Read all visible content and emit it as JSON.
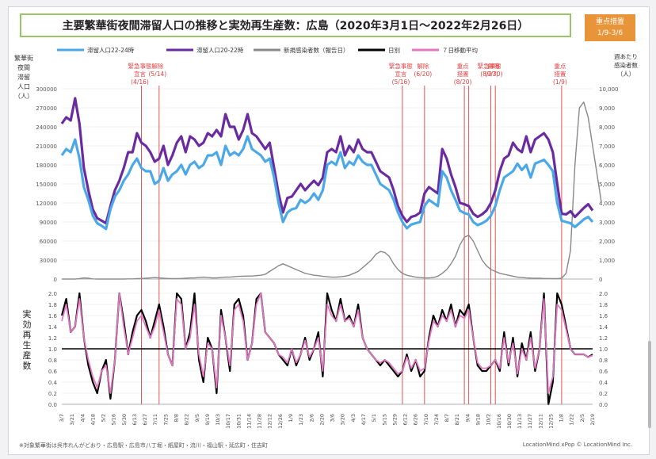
{
  "title": "主要繁華街夜間滞留人口の推移と実効再生産数：広島（2020年3月1日～2022年2月26日）",
  "badge": {
    "line1": "重点措置",
    "line2": "1/9-3/6"
  },
  "legend": {
    "stay_22_24": "滞留人口22-24時",
    "stay_20_22": "滞留人口20-22時",
    "new_cases": "新規感染者数（報告日）",
    "daily": "日別",
    "ma7": "７日移動平均"
  },
  "left_axis_label": [
    "繁華街",
    "夜間",
    "滞留",
    "人口",
    "（人）"
  ],
  "right_axis_label": [
    "週あたり",
    "感染者数",
    "（人）"
  ],
  "rt_axis_label": [
    "実",
    "効",
    "再",
    "生",
    "産",
    "数"
  ],
  "events": [
    {
      "label": [
        "緊急事態",
        "宣言",
        "(4/16)"
      ],
      "x": 18
    },
    {
      "label": [
        "解除",
        "(5/14)"
      ],
      "x": 22
    },
    {
      "label": [
        "緊急事態",
        "宣言",
        "(5/16)"
      ],
      "x": 77
    },
    {
      "label": [
        "解除",
        "(6/20)"
      ],
      "x": 82
    },
    {
      "label": [
        "重点",
        "措置",
        "(8/20)"
      ],
      "x": 91
    },
    {
      "label": [
        ""
      ],
      "x": 92
    },
    {
      "label": [
        "緊急事態",
        "(8/27)"
      ],
      "x": 97
    },
    {
      "label": [
        "解除",
        "(9/30)"
      ],
      "x": 98
    },
    {
      "label": [
        "重点",
        "措置",
        "(1/9)"
      ],
      "x": 113
    }
  ],
  "footnote": "※対象繁華街は呉市れんがどおり・広島駅・広島市八丁堀・紙屋町・流川・福山駅・延広町・住吉町",
  "copyright": "LocationMind xPop © LocationMind Inc.",
  "colors": {
    "stay_22_24": "#4aa8e8",
    "stay_20_22": "#6a2aa0",
    "cases": "#888888",
    "daily": "#000000",
    "ma7": "#e377c2",
    "event": "#e04040"
  },
  "chart_data": [
    {
      "type": "line",
      "title": "主要繁華街夜間滞留人口の推移と実効再生産数：広島（2020年3月1日～2022年2月26日）",
      "x_tick_labels": [
        "3/7",
        "3/21",
        "4/4",
        "4/18",
        "5/2",
        "5/16",
        "5/30",
        "6/13",
        "6/27",
        "7/11",
        "7/25",
        "8/8",
        "8/22",
        "9/5",
        "9/19",
        "10/3",
        "10/17",
        "10/31",
        "11/14",
        "11/28",
        "12/12",
        "12/26",
        "1/9",
        "1/23",
        "2/6",
        "2/20",
        "3/6",
        "3/20",
        "4/3",
        "4/17",
        "5/1",
        "5/15",
        "5/29",
        "6/12",
        "6/26",
        "7/10",
        "7/24",
        "8/7",
        "8/21",
        "9/4",
        "9/18",
        "10/2",
        "10/16",
        "10/30",
        "11/13",
        "11/27",
        "12/11",
        "12/25",
        "1/8",
        "1/22",
        "2/5",
        "2/19"
      ],
      "left_ylim": [
        0,
        300000
      ],
      "left_yticks": [
        "0",
        "30000",
        "60000",
        "90000",
        "120000",
        "150000",
        "180000",
        "210000",
        "240000",
        "270000",
        "300000"
      ],
      "right_ylim": [
        0,
        10000
      ],
      "right_yticks": [
        "0",
        "1,000",
        "2,000",
        "3,000",
        "4,000",
        "5,000",
        "6,000",
        "7,000",
        "8,000",
        "9,000",
        "10,000"
      ],
      "series": [
        {
          "name": "滞留人口22-24時",
          "axis": "left",
          "values": [
            195000,
            205000,
            200000,
            220000,
            190000,
            145000,
            125000,
            100000,
            88000,
            84000,
            79000,
            110000,
            130000,
            140000,
            155000,
            165000,
            180000,
            190000,
            175000,
            170000,
            170000,
            150000,
            155000,
            175000,
            155000,
            165000,
            170000,
            180000,
            165000,
            180000,
            185000,
            175000,
            180000,
            195000,
            195000,
            200000,
            180000,
            210000,
            195000,
            200000,
            195000,
            205000,
            225000,
            205000,
            200000,
            195000,
            185000,
            190000,
            160000,
            120000,
            90000,
            105000,
            110000,
            112000,
            125000,
            120000,
            125000,
            135000,
            125000,
            140000,
            180000,
            185000,
            180000,
            200000,
            175000,
            185000,
            180000,
            195000,
            185000,
            180000,
            180000,
            165000,
            150000,
            145000,
            140000,
            125000,
            105000,
            90000,
            80000,
            86000,
            88000,
            90000,
            115000,
            125000,
            120000,
            115000,
            170000,
            160000,
            140000,
            125000,
            108000,
            104000,
            102000,
            90000,
            85000,
            88000,
            92000,
            100000,
            115000,
            140000,
            160000,
            165000,
            170000,
            182000,
            172000,
            180000,
            160000,
            182000,
            185000,
            188000,
            180000,
            170000,
            120000,
            92000,
            90000,
            88000,
            82000,
            88000,
            94000,
            98000,
            90000
          ]
        },
        {
          "name": "滞留人口20-22時",
          "axis": "left",
          "values": [
            245000,
            255000,
            250000,
            285000,
            245000,
            175000,
            140000,
            110000,
            96000,
            92000,
            88000,
            115000,
            140000,
            155000,
            175000,
            200000,
            200000,
            230000,
            215000,
            210000,
            200000,
            185000,
            190000,
            210000,
            180000,
            195000,
            215000,
            225000,
            200000,
            225000,
            220000,
            210000,
            215000,
            230000,
            225000,
            235000,
            225000,
            260000,
            240000,
            240000,
            220000,
            235000,
            260000,
            230000,
            225000,
            215000,
            205000,
            215000,
            175000,
            135000,
            105000,
            128000,
            130000,
            140000,
            150000,
            140000,
            148000,
            155000,
            148000,
            160000,
            200000,
            205000,
            200000,
            225000,
            195000,
            210000,
            200000,
            220000,
            205000,
            200000,
            200000,
            185000,
            170000,
            165000,
            160000,
            140000,
            115000,
            100000,
            90000,
            98000,
            100000,
            105000,
            135000,
            145000,
            140000,
            135000,
            205000,
            190000,
            165000,
            145000,
            120000,
            118000,
            115000,
            103000,
            98000,
            102000,
            108000,
            120000,
            140000,
            170000,
            190000,
            195000,
            215000,
            205000,
            200000,
            225000,
            200000,
            220000,
            225000,
            230000,
            220000,
            200000,
            150000,
            103000,
            102000,
            107000,
            98000,
            105000,
            112000,
            118000,
            108000
          ]
        },
        {
          "name": "新規感染者数（報告日）",
          "axis": "right",
          "values": [
            0,
            0,
            0,
            0,
            20,
            60,
            40,
            10,
            0,
            0,
            0,
            0,
            0,
            0,
            0,
            10,
            10,
            20,
            30,
            40,
            60,
            80,
            60,
            40,
            30,
            20,
            20,
            30,
            40,
            60,
            60,
            80,
            100,
            80,
            60,
            60,
            80,
            100,
            100,
            120,
            140,
            150,
            160,
            160,
            180,
            200,
            250,
            400,
            550,
            700,
            800,
            700,
            600,
            500,
            400,
            300,
            250,
            200,
            180,
            140,
            120,
            100,
            100,
            120,
            150,
            200,
            300,
            400,
            600,
            800,
            1000,
            1300,
            1450,
            1400,
            1200,
            800,
            500,
            300,
            200,
            150,
            100,
            80,
            60,
            60,
            80,
            150,
            300,
            500,
            800,
            1200,
            1800,
            2200,
            2300,
            2000,
            1500,
            1000,
            700,
            500,
            400,
            300,
            250,
            200,
            150,
            100,
            80,
            60,
            50,
            40,
            40,
            30,
            30,
            20,
            20,
            40,
            300,
            1500,
            6000,
            9000,
            9300,
            8500,
            7000,
            5500,
            4000
          ]
        },
        {
          "name": "日別",
          "axis": "rt",
          "values": [
            1.6,
            1.9,
            1.3,
            1.4,
            2.1,
            1.2,
            0.7,
            0.4,
            0.2,
            0.6,
            0.8,
            0.1,
            0.8,
            2.2,
            1.5,
            0.9,
            1.3,
            1.6,
            1.7,
            1.5,
            1.2,
            1.5,
            1.8,
            1.4,
            0.9,
            0.7,
            2.1,
            1.9,
            1.0,
            1.3,
            2.0,
            0.8,
            0.4,
            1.2,
            1.0,
            0.2,
            1.7,
            1.2,
            0.6,
            1.8,
            1.9,
            1.6,
            0.8,
            1.1,
            1.9,
            2.2,
            1.3,
            1.2,
            1.1,
            0.9,
            0.8,
            0.7,
            1.0,
            0.7,
            0.9,
            1.2,
            0.8,
            1.0,
            1.3,
            0.5,
            2.0,
            1.7,
            1.5,
            1.9,
            1.5,
            1.6,
            1.4,
            1.8,
            1.2,
            1.0,
            0.9,
            0.8,
            0.7,
            0.8,
            0.7,
            0.6,
            0.5,
            0.6,
            0.9,
            0.6,
            0.8,
            0.5,
            0.6,
            1.2,
            1.6,
            1.4,
            1.7,
            1.5,
            1.8,
            1.4,
            1.7,
            1.6,
            1.8,
            1.2,
            0.7,
            0.6,
            0.6,
            0.7,
            0.8,
            0.6,
            1.3,
            0.7,
            1.2,
            0.5,
            1.1,
            0.8,
            1.3,
            0.6,
            1.0,
            2.2,
            0.0,
            0.4,
            2.0,
            1.8,
            1.4,
            1.0,
            0.9,
            0.9,
            0.9,
            0.85,
            0.9
          ]
        },
        {
          "name": "７日移動平均",
          "axis": "rt",
          "values": [
            1.5,
            1.8,
            1.3,
            1.4,
            1.9,
            1.2,
            0.8,
            0.5,
            0.3,
            0.6,
            0.7,
            0.2,
            0.8,
            2.0,
            1.4,
            0.9,
            1.2,
            1.5,
            1.6,
            1.4,
            1.2,
            1.4,
            1.7,
            1.3,
            0.9,
            0.7,
            1.9,
            1.8,
            1.0,
            1.2,
            1.8,
            0.9,
            0.5,
            1.1,
            1.0,
            0.3,
            1.6,
            1.2,
            0.7,
            1.7,
            1.8,
            1.5,
            0.8,
            1.1,
            1.8,
            2.0,
            1.3,
            1.2,
            1.1,
            0.9,
            0.85,
            0.75,
            1.0,
            0.75,
            0.9,
            1.15,
            0.85,
            1.0,
            1.2,
            0.6,
            1.8,
            1.6,
            1.5,
            1.8,
            1.5,
            1.55,
            1.4,
            1.7,
            1.2,
            1.0,
            0.9,
            0.8,
            0.75,
            0.8,
            0.75,
            0.65,
            0.55,
            0.6,
            0.85,
            0.65,
            0.8,
            0.6,
            0.65,
            1.15,
            1.5,
            1.4,
            1.6,
            1.5,
            1.7,
            1.4,
            1.6,
            1.55,
            1.7,
            1.2,
            0.75,
            0.65,
            0.65,
            0.7,
            0.8,
            0.65,
            1.2,
            0.75,
            1.1,
            0.55,
            1.0,
            0.8,
            1.2,
            0.65,
            1.0,
            1.9,
            0.2,
            0.5,
            1.8,
            1.7,
            1.35,
            1.0,
            0.9,
            0.9,
            0.9,
            0.85,
            0.88
          ]
        }
      ],
      "rt_ylim": [
        0,
        2.0
      ],
      "rt_yticks": [
        "0.0",
        "0.2",
        "0.4",
        "0.6",
        "0.8",
        "1.0",
        "1.2",
        "1.4",
        "1.6",
        "1.8",
        "2.0"
      ],
      "rt_reference": 1.0
    }
  ]
}
